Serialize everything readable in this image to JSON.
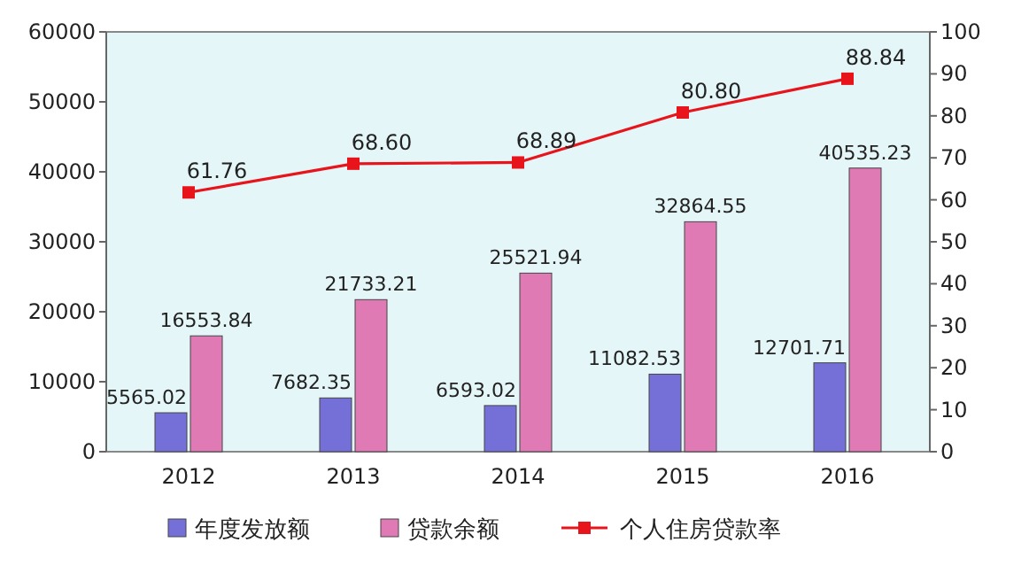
{
  "chart_data": {
    "type": "bar",
    "categories": [
      "2012",
      "2013",
      "2014",
      "2015",
      "2016"
    ],
    "series": [
      {
        "name": "年度发放额",
        "color": "#7470d8",
        "values": [
          5565.02,
          7682.35,
          6593.02,
          11082.53,
          12701.71
        ],
        "value_labels": [
          "5565.02",
          "7682.35",
          "6593.02",
          "11082.53",
          "12701.71"
        ]
      },
      {
        "name": "贷款余额",
        "color": "#e07ab4",
        "values": [
          16553.84,
          21733.21,
          25521.94,
          32864.55,
          40535.23
        ],
        "value_labels": [
          "16553.84",
          "21733.21",
          "25521.94",
          "32864.55",
          "40535.23"
        ]
      },
      {
        "name": "个人住房贷款率",
        "type": "line",
        "axis": "y2",
        "color": "#e8141c",
        "marker": "square",
        "values": [
          61.76,
          68.6,
          68.89,
          80.8,
          88.84
        ],
        "value_labels": [
          "61.76",
          "68.60",
          "68.89",
          "80.80",
          "88.84"
        ]
      }
    ],
    "ylim": [
      0,
      60000
    ],
    "yticks": [
      0,
      10000,
      20000,
      30000,
      40000,
      50000,
      60000
    ],
    "y2lim": [
      0,
      100
    ],
    "y2ticks": [
      0,
      10,
      20,
      30,
      40,
      50,
      60,
      70,
      80,
      90,
      100
    ],
    "legend": "bottom",
    "grid": false
  }
}
